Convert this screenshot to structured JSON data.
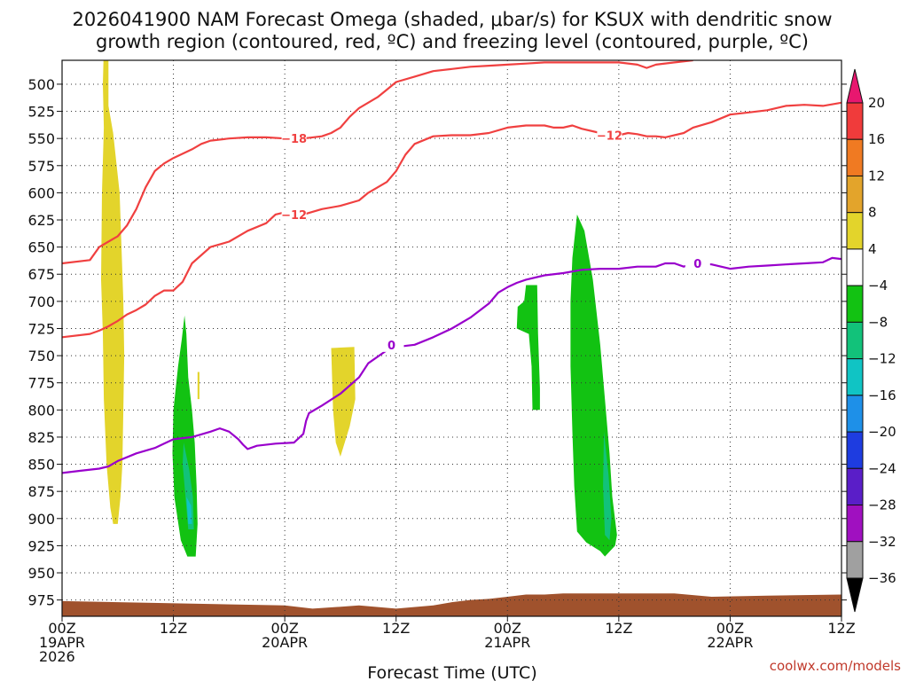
{
  "chart_data": {
    "type": "heatmap",
    "title_lines": [
      "2026041900 NAM Forecast Omega (shaded, μbar/s) for KSUX with dendritic snow",
      "growth region (contoured, red, ºC) and freezing level (contoured, purple, ºC)"
    ],
    "xlabel": "Forecast Time (UTC)",
    "credit": "coolwx.com/models",
    "x_unit": "hours since 2026-04-19 00Z",
    "xlim": [
      0,
      84
    ],
    "ylim": [
      990,
      478
    ],
    "y_ticks": [
      500,
      525,
      550,
      575,
      600,
      625,
      650,
      675,
      700,
      725,
      750,
      775,
      800,
      825,
      850,
      875,
      900,
      925,
      950,
      975
    ],
    "x_ticks": [
      {
        "hour": 0,
        "lines": [
          "00Z",
          "19APR",
          "2026"
        ]
      },
      {
        "hour": 12,
        "lines": [
          "12Z"
        ]
      },
      {
        "hour": 24,
        "lines": [
          "00Z",
          "20APR"
        ]
      },
      {
        "hour": 36,
        "lines": [
          "12Z"
        ]
      },
      {
        "hour": 48,
        "lines": [
          "00Z",
          "21APR"
        ]
      },
      {
        "hour": 60,
        "lines": [
          "12Z"
        ]
      },
      {
        "hour": 72,
        "lines": [
          "00Z",
          "22APR"
        ]
      },
      {
        "hour": 84,
        "lines": [
          "12Z"
        ]
      }
    ],
    "colorbar": {
      "levels": [
        20,
        16,
        12,
        8,
        4,
        -4,
        -8,
        -12,
        -16,
        -20,
        -24,
        -28,
        -32,
        -36
      ],
      "colors": [
        "#e8176f",
        "#f03b3b",
        "#f07a22",
        "#e3a42b",
        "#e3d42b",
        "#ffffff",
        "#12c212",
        "#12c27a",
        "#10c4c4",
        "#1e90e8",
        "#1e3ce0",
        "#5a1ec8",
        "#a010c0",
        "#a0a0a0",
        "#000000"
      ]
    },
    "series": [
      {
        "name": "-18",
        "kind": "contour",
        "color": "#f04040",
        "points": [
          [
            0,
            665
          ],
          [
            3,
            662
          ],
          [
            4,
            650
          ],
          [
            6,
            640
          ],
          [
            7,
            630
          ],
          [
            8,
            615
          ],
          [
            9,
            595
          ],
          [
            10,
            580
          ],
          [
            11,
            573
          ],
          [
            12,
            568
          ],
          [
            14,
            560
          ],
          [
            15,
            555
          ],
          [
            16,
            552
          ],
          [
            18,
            550
          ],
          [
            20,
            549
          ],
          [
            22,
            549
          ],
          [
            24,
            550
          ],
          [
            26,
            550
          ],
          [
            28,
            548
          ],
          [
            29,
            545
          ],
          [
            30,
            540
          ],
          [
            31,
            530
          ],
          [
            32,
            522
          ],
          [
            34,
            512
          ],
          [
            35,
            505
          ],
          [
            36,
            498
          ],
          [
            38,
            493
          ],
          [
            40,
            488
          ],
          [
            42,
            486
          ],
          [
            44,
            484
          ],
          [
            46,
            483
          ],
          [
            48,
            482
          ],
          [
            50,
            481
          ],
          [
            52,
            480
          ],
          [
            54,
            480
          ],
          [
            56,
            480
          ],
          [
            58,
            480
          ],
          [
            60,
            480
          ],
          [
            62,
            482
          ],
          [
            63,
            485
          ],
          [
            64,
            482
          ],
          [
            66,
            480
          ],
          [
            68,
            478
          ]
        ],
        "label_at": [
          25,
          550
        ]
      },
      {
        "name": "-12 (lower)",
        "kind": "contour",
        "color": "#f04040",
        "points": [
          [
            0,
            733
          ],
          [
            3,
            730
          ],
          [
            4,
            727
          ],
          [
            5,
            723
          ],
          [
            6,
            718
          ],
          [
            7,
            712
          ],
          [
            8,
            708
          ],
          [
            9,
            703
          ],
          [
            10,
            695
          ],
          [
            11,
            690
          ],
          [
            12,
            690
          ],
          [
            13,
            682
          ],
          [
            14,
            665
          ],
          [
            16,
            650
          ],
          [
            18,
            645
          ],
          [
            20,
            635
          ],
          [
            22,
            628
          ],
          [
            23,
            620
          ],
          [
            24,
            618
          ],
          [
            26,
            620
          ],
          [
            28,
            615
          ],
          [
            30,
            612
          ],
          [
            32,
            607
          ],
          [
            33,
            600
          ],
          [
            35,
            590
          ],
          [
            36,
            580
          ],
          [
            37,
            565
          ],
          [
            38,
            555
          ],
          [
            40,
            548
          ],
          [
            42,
            547
          ],
          [
            44,
            547
          ],
          [
            46,
            545
          ],
          [
            48,
            540
          ],
          [
            50,
            538
          ],
          [
            52,
            538
          ],
          [
            53,
            540
          ],
          [
            54,
            540
          ],
          [
            55,
            538
          ],
          [
            56,
            541
          ],
          [
            58,
            545
          ],
          [
            59,
            547
          ],
          [
            60,
            547
          ],
          [
            61,
            545
          ],
          [
            62,
            546
          ],
          [
            63,
            548
          ],
          [
            64,
            548
          ],
          [
            65,
            549
          ],
          [
            67,
            545
          ],
          [
            68,
            540
          ],
          [
            70,
            535
          ],
          [
            72,
            528
          ],
          [
            74,
            526
          ],
          [
            76,
            524
          ],
          [
            78,
            520
          ],
          [
            80,
            519
          ],
          [
            82,
            520
          ],
          [
            84,
            517
          ]
        ],
        "label_at": [
          25,
          620
        ],
        "label2_at": [
          59,
          547
        ]
      },
      {
        "name": "0",
        "kind": "contour",
        "color": "#9900cc",
        "points": [
          [
            0,
            858
          ],
          [
            2,
            856
          ],
          [
            4,
            854
          ],
          [
            5,
            852
          ],
          [
            6,
            847
          ],
          [
            8,
            840
          ],
          [
            10,
            835
          ],
          [
            11,
            831
          ],
          [
            12,
            827
          ],
          [
            14,
            825
          ],
          [
            16,
            820
          ],
          [
            17,
            817
          ],
          [
            18,
            820
          ],
          [
            19,
            827
          ],
          [
            19.5,
            832
          ],
          [
            20,
            836
          ],
          [
            21,
            833
          ],
          [
            23,
            831
          ],
          [
            25,
            830
          ],
          [
            26,
            822
          ],
          [
            26.3,
            810
          ],
          [
            26.6,
            803
          ],
          [
            28,
            796
          ],
          [
            30,
            785
          ],
          [
            32,
            770
          ],
          [
            33,
            757
          ],
          [
            35,
            745
          ],
          [
            36,
            742
          ],
          [
            38,
            740
          ],
          [
            40,
            733
          ],
          [
            42,
            725
          ],
          [
            44,
            715
          ],
          [
            46,
            702
          ],
          [
            47,
            692
          ],
          [
            48,
            687
          ],
          [
            49,
            683
          ],
          [
            50,
            680
          ],
          [
            52,
            676
          ],
          [
            54,
            674
          ],
          [
            56,
            671
          ],
          [
            58,
            670
          ],
          [
            60,
            670
          ],
          [
            62,
            668
          ],
          [
            64,
            668
          ],
          [
            65,
            665
          ],
          [
            66,
            665
          ],
          [
            67,
            668
          ],
          [
            68,
            665
          ],
          [
            70,
            666
          ],
          [
            72,
            670
          ],
          [
            74,
            668
          ],
          [
            76,
            667
          ],
          [
            78,
            666
          ],
          [
            80,
            665
          ],
          [
            82,
            664
          ],
          [
            83,
            660
          ],
          [
            84,
            661
          ]
        ],
        "label_at": [
          35.5,
          740
        ],
        "label2_at": [
          68.5,
          665
        ]
      }
    ],
    "shaded_regions": [
      {
        "level": 4,
        "color": "#e3d42b",
        "outline": [
          [
            4.5,
            465
          ],
          [
            5,
            465
          ],
          [
            5,
            520
          ],
          [
            5.5,
            545
          ],
          [
            6.2,
            600
          ],
          [
            6.4,
            650
          ],
          [
            6.6,
            700
          ],
          [
            6.7,
            750
          ],
          [
            6.6,
            800
          ],
          [
            6.5,
            850
          ],
          [
            6.3,
            880
          ],
          [
            6,
            905
          ],
          [
            5.5,
            905
          ],
          [
            5.2,
            890
          ],
          [
            4.8,
            850
          ],
          [
            4.5,
            790
          ],
          [
            4.4,
            730
          ],
          [
            4.2,
            680
          ],
          [
            4.3,
            600
          ],
          [
            4.5,
            540
          ],
          [
            4.4,
            500
          ]
        ]
      },
      {
        "level": 4,
        "color": "#e3d42b",
        "outline": [
          [
            14.6,
            765
          ],
          [
            14.8,
            765
          ],
          [
            14.8,
            790
          ],
          [
            14.6,
            790
          ]
        ]
      },
      {
        "level": 4,
        "color": "#e3d42b",
        "outline": [
          [
            29,
            743
          ],
          [
            31.5,
            742
          ],
          [
            31.6,
            790
          ],
          [
            31,
            815
          ],
          [
            30,
            843
          ],
          [
            29.5,
            830
          ],
          [
            29.2,
            800
          ]
        ]
      },
      {
        "level": -4,
        "color": "#12c212",
        "outline": [
          [
            13.2,
            713
          ],
          [
            13.4,
            730
          ],
          [
            13.6,
            770
          ],
          [
            14,
            800
          ],
          [
            14.3,
            830
          ],
          [
            14.5,
            870
          ],
          [
            14.6,
            905
          ],
          [
            14.4,
            935
          ],
          [
            13.5,
            935
          ],
          [
            12.8,
            920
          ],
          [
            12.1,
            880
          ],
          [
            11.9,
            840
          ],
          [
            12,
            800
          ],
          [
            12.5,
            760
          ],
          [
            12.9,
            735
          ]
        ]
      },
      {
        "level": -4,
        "color": "#12c212",
        "outline": [
          [
            50,
            685
          ],
          [
            51.2,
            685
          ],
          [
            51.3,
            730
          ],
          [
            51.5,
            780
          ],
          [
            51.5,
            800
          ],
          [
            50.7,
            800
          ],
          [
            50.6,
            760
          ],
          [
            50.3,
            730
          ],
          [
            49,
            725
          ],
          [
            49.1,
            705
          ],
          [
            49.8,
            700
          ]
        ]
      },
      {
        "level": -4,
        "color": "#12c212",
        "outline": [
          [
            55.5,
            620
          ],
          [
            56.3,
            635
          ],
          [
            57.2,
            680
          ],
          [
            58,
            740
          ],
          [
            58.5,
            790
          ],
          [
            59,
            840
          ],
          [
            59.3,
            880
          ],
          [
            59.8,
            915
          ],
          [
            59.6,
            925
          ],
          [
            58.5,
            935
          ],
          [
            58,
            930
          ],
          [
            56.5,
            922
          ],
          [
            55.5,
            912
          ],
          [
            55.2,
            870
          ],
          [
            55,
            820
          ],
          [
            54.8,
            760
          ],
          [
            54.8,
            700
          ],
          [
            55,
            660
          ]
        ]
      }
    ],
    "shaded_cores": [
      {
        "level": -8,
        "color": "#12c27a",
        "outline": [
          [
            13.1,
            830
          ],
          [
            13.7,
            855
          ],
          [
            14.1,
            880
          ],
          [
            14.2,
            910
          ],
          [
            13.6,
            910
          ],
          [
            13.3,
            880
          ],
          [
            13.0,
            850
          ]
        ]
      },
      {
        "level": -12,
        "color": "#10c4c4",
        "outline": [
          [
            13.4,
            880
          ],
          [
            13.9,
            888
          ],
          [
            14,
            905
          ],
          [
            13.6,
            905
          ]
        ]
      },
      {
        "level": -8,
        "color": "#12c27a",
        "outline": [
          [
            58.4,
            820
          ],
          [
            58.9,
            860
          ],
          [
            59.2,
            900
          ],
          [
            59,
            920
          ],
          [
            58.5,
            915
          ],
          [
            58.3,
            870
          ]
        ]
      }
    ],
    "terrain": {
      "color": "#a0522d",
      "outline": [
        [
          0,
          976
        ],
        [
          24,
          980
        ],
        [
          27,
          983
        ],
        [
          32,
          980
        ],
        [
          36,
          983
        ],
        [
          40,
          980
        ],
        [
          42,
          977
        ],
        [
          44,
          975
        ],
        [
          46,
          974
        ],
        [
          48,
          972
        ],
        [
          50,
          970
        ],
        [
          52,
          970
        ],
        [
          54,
          969
        ],
        [
          60,
          969
        ],
        [
          66,
          969
        ],
        [
          70,
          972
        ],
        [
          76,
          971
        ],
        [
          84,
          970
        ]
      ]
    }
  }
}
